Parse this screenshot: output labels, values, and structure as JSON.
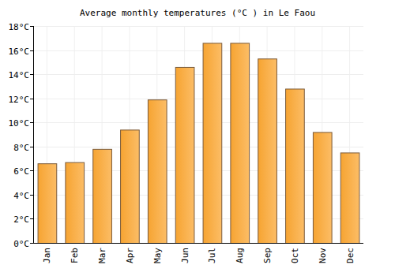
{
  "chart_data": {
    "type": "bar",
    "title": "Average monthly temperatures (°C ) in Le Faou",
    "categories": [
      "Jan",
      "Feb",
      "Mar",
      "Apr",
      "May",
      "Jun",
      "Jul",
      "Aug",
      "Sep",
      "Oct",
      "Nov",
      "Dec"
    ],
    "values": [
      6.6,
      6.7,
      7.8,
      9.4,
      11.9,
      14.6,
      16.6,
      16.6,
      15.3,
      12.8,
      9.2,
      7.5
    ],
    "color": "#fba733",
    "ylim": [
      0,
      18
    ],
    "yticks": [
      {
        "value": 0,
        "label": "0°C"
      },
      {
        "value": 2,
        "label": "2°C"
      },
      {
        "value": 4,
        "label": "4°C"
      },
      {
        "value": 6,
        "label": "6°C"
      },
      {
        "value": 8,
        "label": "8°C"
      },
      {
        "value": 10,
        "label": "10°C"
      },
      {
        "value": 12,
        "label": "12°C"
      },
      {
        "value": 14,
        "label": "14°C"
      },
      {
        "value": 16,
        "label": "16°C"
      },
      {
        "value": 18,
        "label": "18°C"
      }
    ],
    "grid": true
  }
}
